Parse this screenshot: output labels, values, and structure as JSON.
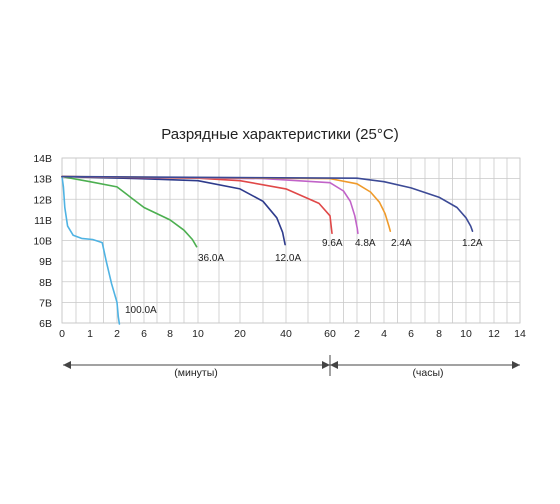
{
  "chart_data": {
    "type": "line",
    "title": "Разрядные характеристики (25°C)",
    "y_ticks": [
      "14В",
      "13В",
      "12В",
      "11В",
      "10В",
      "9В",
      "8В",
      "7В",
      "6В"
    ],
    "y_values": [
      14,
      13,
      12,
      11,
      10,
      9,
      8,
      7,
      6
    ],
    "ylim": [
      6,
      14
    ],
    "x_ticks": [
      "0",
      "1",
      "2",
      "6",
      "8",
      "10",
      "20",
      "40",
      "60",
      "2",
      "4",
      "6",
      "8",
      "10",
      "12",
      "14"
    ],
    "x_tick_times_min": [
      0,
      1,
      2,
      6,
      8,
      10,
      20,
      40,
      60,
      120,
      240,
      360,
      480,
      600,
      720,
      840
    ],
    "range_labels": {
      "minutes": "(минуты)",
      "hours": "(часы)"
    },
    "grid": true,
    "series": [
      {
        "name": "100.0A",
        "color": "#4fb3e3",
        "points": [
          [
            0,
            13.1
          ],
          [
            0.05,
            12.6
          ],
          [
            0.1,
            11.6
          ],
          [
            0.2,
            10.7
          ],
          [
            0.4,
            10.25
          ],
          [
            0.7,
            10.1
          ],
          [
            1.1,
            10.05
          ],
          [
            1.45,
            9.9
          ],
          [
            1.6,
            9.0
          ],
          [
            1.8,
            7.9
          ],
          [
            2.0,
            7.0
          ],
          [
            2.2,
            6.3
          ],
          [
            2.35,
            5.95
          ]
        ]
      },
      {
        "name": "36.0A",
        "color": "#4caf50",
        "points": [
          [
            0,
            13.1
          ],
          [
            1,
            12.85
          ],
          [
            2,
            12.6
          ],
          [
            4,
            12.1
          ],
          [
            6,
            11.6
          ],
          [
            8,
            11.0
          ],
          [
            9,
            10.5
          ],
          [
            9.6,
            10.05
          ],
          [
            9.9,
            9.7
          ]
        ]
      },
      {
        "name": "12.0A",
        "color": "#2e3b8c",
        "points": [
          [
            0,
            13.1
          ],
          [
            5,
            13.0
          ],
          [
            10,
            12.9
          ],
          [
            20,
            12.5
          ],
          [
            30,
            11.9
          ],
          [
            36,
            11.1
          ],
          [
            38.5,
            10.4
          ],
          [
            39.6,
            9.8
          ]
        ]
      },
      {
        "name": "9.6A",
        "color": "#e04848",
        "points": [
          [
            0,
            13.1
          ],
          [
            10,
            13.02
          ],
          [
            20,
            12.9
          ],
          [
            40,
            12.5
          ],
          [
            55,
            11.8
          ],
          [
            60,
            11.2
          ],
          [
            63,
            10.6
          ],
          [
            64.5,
            10.35
          ]
        ]
      },
      {
        "name": "4.8A",
        "color": "#c163c8",
        "points": [
          [
            0,
            13.1
          ],
          [
            30,
            13.0
          ],
          [
            60,
            12.8
          ],
          [
            90,
            12.4
          ],
          [
            105,
            11.9
          ],
          [
            115,
            11.2
          ],
          [
            121,
            10.6
          ],
          [
            124,
            10.35
          ]
        ]
      },
      {
        "name": "2.4A",
        "color": "#ef9a2a",
        "points": [
          [
            0,
            13.1
          ],
          [
            60,
            13.0
          ],
          [
            120,
            12.75
          ],
          [
            180,
            12.35
          ],
          [
            220,
            11.85
          ],
          [
            245,
            11.3
          ],
          [
            262,
            10.7
          ],
          [
            268,
            10.45
          ]
        ]
      },
      {
        "name": "1.2A",
        "color": "#3c4a96",
        "points": [
          [
            0,
            13.1
          ],
          [
            120,
            13.02
          ],
          [
            240,
            12.85
          ],
          [
            360,
            12.55
          ],
          [
            480,
            12.1
          ],
          [
            560,
            11.6
          ],
          [
            600,
            11.1
          ],
          [
            620,
            10.7
          ],
          [
            628,
            10.45
          ]
        ]
      }
    ]
  }
}
